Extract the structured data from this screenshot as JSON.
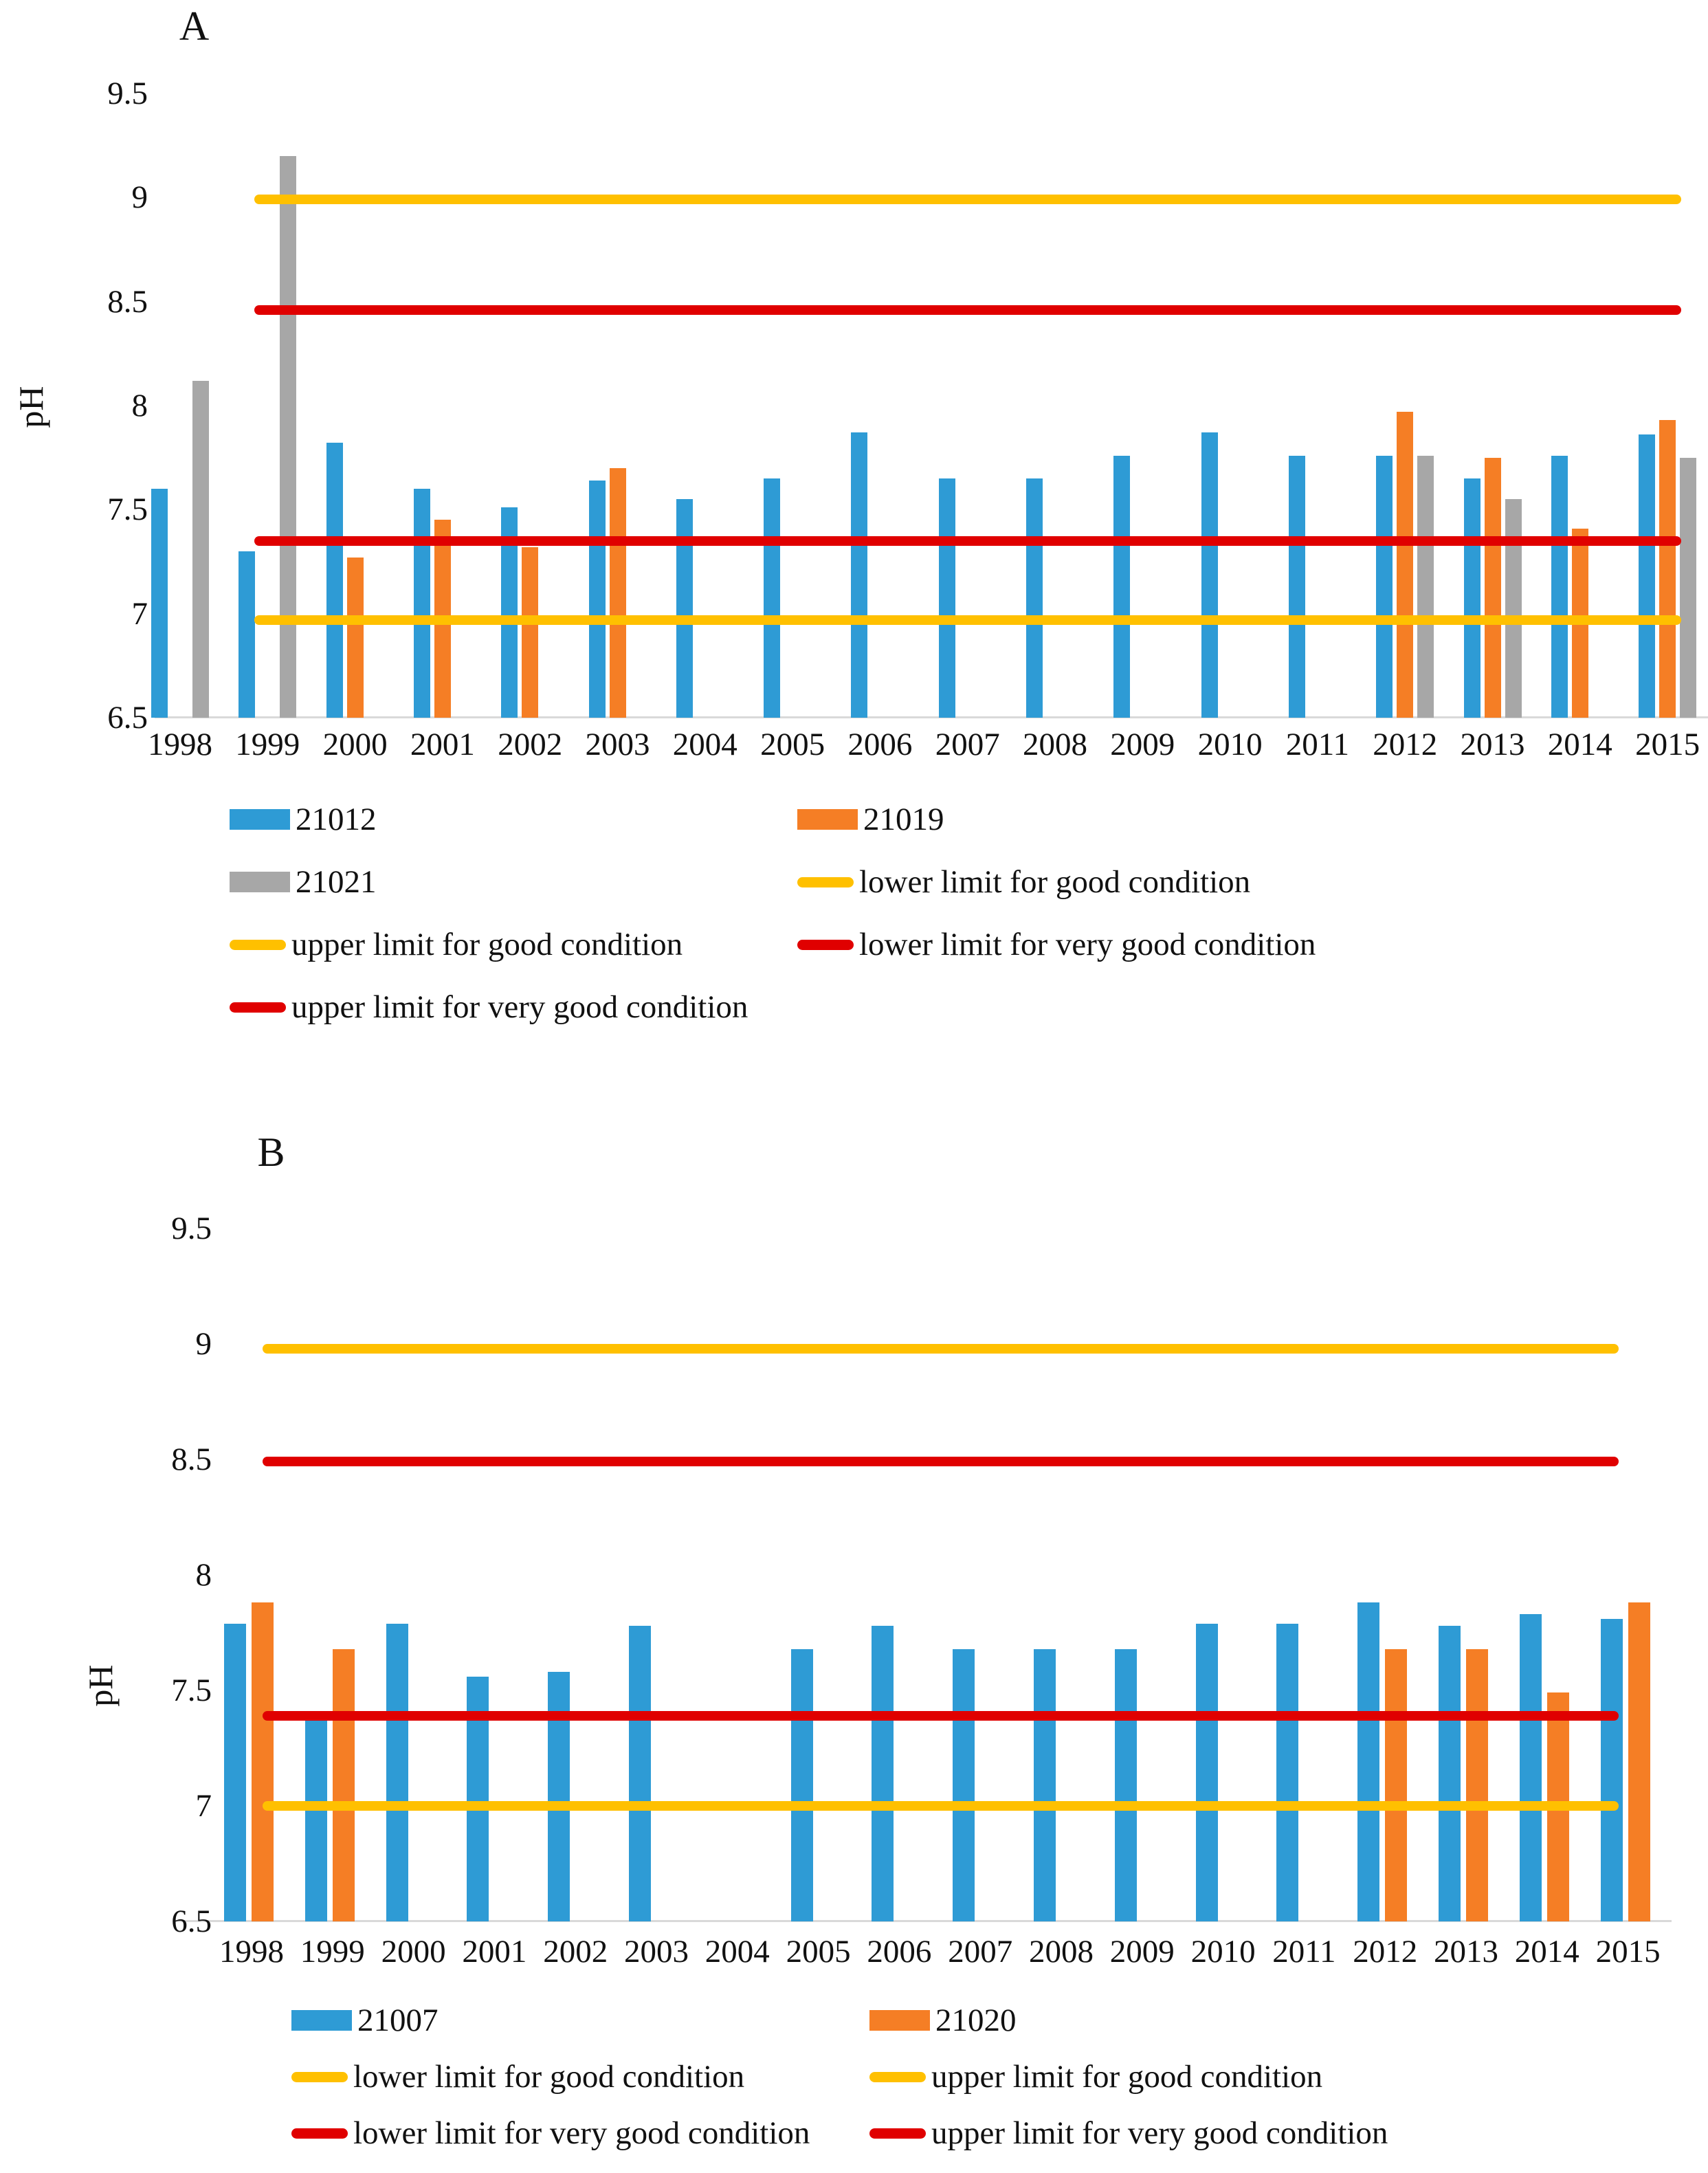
{
  "colors": {
    "blue": "#2E9BD5",
    "orange": "#F57E25",
    "gray": "#A7A7A7",
    "yellow": "#FFC000",
    "red": "#E00000",
    "axis": "#D9D9D9"
  },
  "chart_data": [
    {
      "type": "bar",
      "title": "A",
      "ylabel": "pH",
      "ylim": [
        6.5,
        9.5
      ],
      "yticks": [
        9.5,
        9,
        8.5,
        8,
        7.5,
        7,
        6.5
      ],
      "grid": false,
      "categories": [
        "1998",
        "1999",
        "2000",
        "2001",
        "2002",
        "2003",
        "2004",
        "2005",
        "2006",
        "2007",
        "2008",
        "2009",
        "2010",
        "2011",
        "2012",
        "2013",
        "2014",
        "2015"
      ],
      "series": [
        {
          "name": "21012",
          "color": "blue",
          "values": [
            7.6,
            7.3,
            7.82,
            7.6,
            7.51,
            7.64,
            7.55,
            7.65,
            7.87,
            7.65,
            7.65,
            7.76,
            7.87,
            7.76,
            7.76,
            7.65,
            7.76,
            7.86
          ]
        },
        {
          "name": "21019",
          "color": "orange",
          "values": [
            null,
            null,
            7.27,
            7.45,
            7.32,
            7.7,
            null,
            null,
            null,
            null,
            null,
            null,
            null,
            null,
            7.97,
            7.75,
            7.41,
            7.93
          ]
        },
        {
          "name": "21021",
          "color": "gray",
          "values": [
            8.12,
            9.2,
            null,
            null,
            null,
            null,
            null,
            null,
            null,
            null,
            null,
            null,
            null,
            null,
            7.76,
            7.55,
            null,
            7.75
          ]
        }
      ],
      "limit_lines": [
        {
          "name": "lower limit for good condition",
          "color": "yellow",
          "value": 6.97
        },
        {
          "name": "upper limit for good condition",
          "color": "yellow",
          "value": 8.99
        },
        {
          "name": "lower limit for very good condition",
          "color": "red",
          "value": 7.35
        },
        {
          "name": "upper limit for very good condition",
          "color": "red",
          "value": 8.46
        }
      ],
      "legend": [
        {
          "marker": "box",
          "color": "blue",
          "label": "21012"
        },
        {
          "marker": "box",
          "color": "orange",
          "label": "21019"
        },
        {
          "marker": "box",
          "color": "gray",
          "label": "21021"
        },
        {
          "marker": "line",
          "color": "yellow",
          "label": "lower limit for good condition"
        },
        {
          "marker": "line",
          "color": "yellow",
          "label": "upper limit for good condition"
        },
        {
          "marker": "line",
          "color": "red",
          "label": "lower limit for very good condition"
        },
        {
          "marker": "line",
          "color": "red",
          "label": "upper limit for very good condition"
        }
      ]
    },
    {
      "type": "bar",
      "title": "B",
      "ylabel": "pH",
      "ylim": [
        6.5,
        9.5
      ],
      "yticks": [
        9.5,
        9,
        8.5,
        8,
        7.5,
        7,
        6.5
      ],
      "grid": false,
      "categories": [
        "1998",
        "1999",
        "2000",
        "2001",
        "2002",
        "2003",
        "2004",
        "2005",
        "2006",
        "2007",
        "2008",
        "2009",
        "2010",
        "2011",
        "2012",
        "2013",
        "2014",
        "2015"
      ],
      "series": [
        {
          "name": "21007",
          "color": "blue",
          "values": [
            7.79,
            7.38,
            7.79,
            7.56,
            7.58,
            7.78,
            null,
            7.68,
            7.78,
            7.68,
            7.68,
            7.68,
            7.79,
            7.79,
            7.88,
            7.78,
            7.83,
            7.81
          ]
        },
        {
          "name": "21020",
          "color": "orange",
          "values": [
            7.88,
            7.68,
            null,
            null,
            null,
            null,
            null,
            null,
            null,
            null,
            null,
            null,
            null,
            null,
            7.68,
            7.68,
            7.49,
            7.88
          ]
        }
      ],
      "limit_lines": [
        {
          "name": "lower limit for good condition",
          "color": "yellow",
          "value": 7.0
        },
        {
          "name": "upper limit for good condition",
          "color": "yellow",
          "value": 8.98
        },
        {
          "name": "lower limit for very good condition",
          "color": "red",
          "value": 7.39
        },
        {
          "name": "upper limit for very good condition",
          "color": "red",
          "value": 8.49
        }
      ],
      "legend": [
        {
          "marker": "box",
          "color": "blue",
          "label": "21007"
        },
        {
          "marker": "box",
          "color": "orange",
          "label": "21020"
        },
        {
          "marker": "line",
          "color": "yellow",
          "label": "lower limit for good condition"
        },
        {
          "marker": "line",
          "color": "yellow",
          "label": "upper limit for good condition"
        },
        {
          "marker": "line",
          "color": "red",
          "label": "lower limit for very good condition"
        },
        {
          "marker": "line",
          "color": "red",
          "label": "upper limit for very good condition"
        }
      ]
    }
  ]
}
